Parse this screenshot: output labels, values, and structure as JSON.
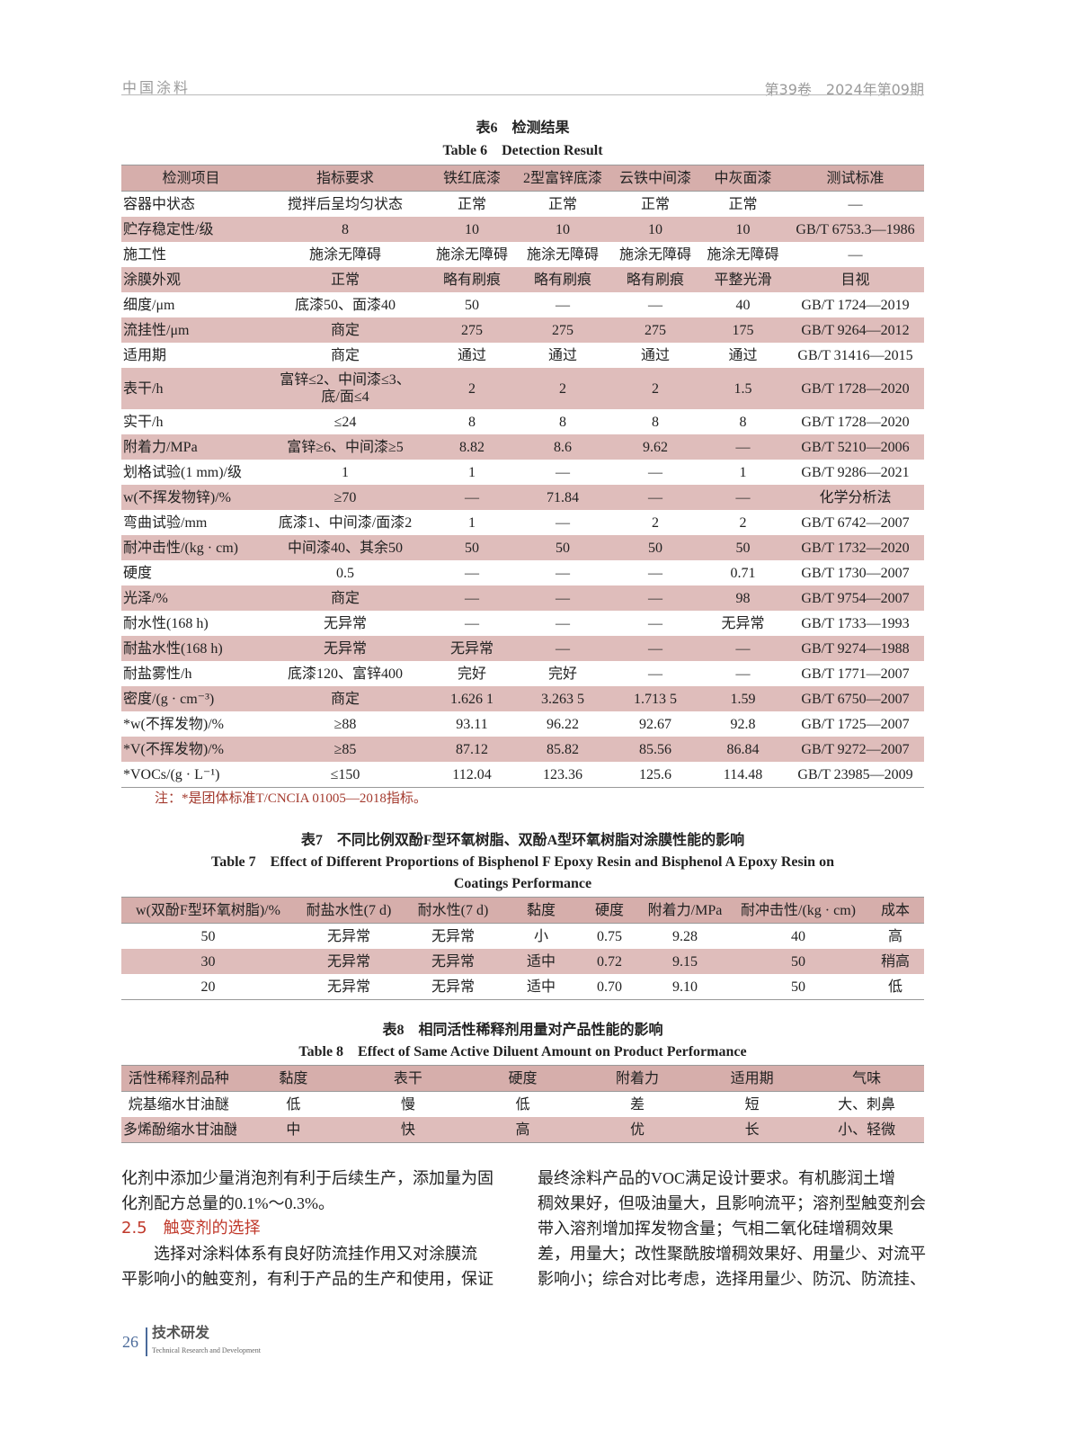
{
  "header": {
    "journal": "中国涂料",
    "issue": "第39卷　2024年第09期"
  },
  "table6": {
    "title_cn": "表6　检测结果",
    "title_en": "Table 6　Detection Result",
    "columns": [
      "检测项目",
      "指标要求",
      "铁红底漆",
      "2型富锌底漆",
      "云铁中间漆",
      "中灰面漆",
      "测试标准"
    ],
    "rows": [
      [
        "容器中状态",
        "搅拌后呈均匀状态",
        "正常",
        "正常",
        "正常",
        "正常",
        "—"
      ],
      [
        "贮存稳定性/级",
        "8",
        "10",
        "10",
        "10",
        "10",
        "GB/T 6753.3—1986"
      ],
      [
        "施工性",
        "施涂无障碍",
        "施涂无障碍",
        "施涂无障碍",
        "施涂无障碍",
        "施涂无障碍",
        "—"
      ],
      [
        "涂膜外观",
        "正常",
        "略有刷痕",
        "略有刷痕",
        "略有刷痕",
        "平整光滑",
        "目视"
      ],
      [
        "细度/μm",
        "底漆50、面漆40",
        "50",
        "—",
        "—",
        "40",
        "GB/T 1724—2019"
      ],
      [
        "流挂性/μm",
        "商定",
        "275",
        "275",
        "275",
        "175",
        "GB/T 9264—2012"
      ],
      [
        "适用期",
        "商定",
        "通过",
        "通过",
        "通过",
        "通过",
        "GB/T 31416—2015"
      ],
      [
        "表干/h",
        "富锌≤2、中间漆≤3、\n底/面≤4",
        "2",
        "2",
        "2",
        "1.5",
        "GB/T 1728—2020"
      ],
      [
        "实干/h",
        "≤24",
        "8",
        "8",
        "8",
        "8",
        "GB/T 1728—2020"
      ],
      [
        "附着力/MPa",
        "富锌≥6、中间漆≥5",
        "8.82",
        "8.6",
        "9.62",
        "—",
        "GB/T 5210—2006"
      ],
      [
        "划格试验(1 mm)/级",
        "1",
        "1",
        "—",
        "—",
        "1",
        "GB/T 9286—2021"
      ],
      [
        "w(不挥发物锌)/%",
        "≥70",
        "—",
        "71.84",
        "—",
        "—",
        "化学分析法"
      ],
      [
        "弯曲试验/mm",
        "底漆1、中间漆/面漆2",
        "1",
        "—",
        "2",
        "2",
        "GB/T 6742—2007"
      ],
      [
        "耐冲击性/(kg · cm)",
        "中间漆40、其余50",
        "50",
        "50",
        "50",
        "50",
        "GB/T 1732—2020"
      ],
      [
        "硬度",
        "0.5",
        "—",
        "—",
        "—",
        "0.71",
        "GB/T 1730—2007"
      ],
      [
        "光泽/%",
        "商定",
        "—",
        "—",
        "—",
        "98",
        "GB/T 9754—2007"
      ],
      [
        "耐水性(168 h)",
        "无异常",
        "—",
        "—",
        "—",
        "无异常",
        "GB/T 1733—1993"
      ],
      [
        "耐盐水性(168 h)",
        "无异常",
        "无异常",
        "—",
        "—",
        "—",
        "GB/T 9274—1988"
      ],
      [
        "耐盐雾性/h",
        "底漆120、富锌400",
        "完好",
        "完好",
        "—",
        "—",
        "GB/T 1771—2007"
      ],
      [
        "密度/(g · cm⁻³)",
        "商定",
        "1.626 1",
        "3.263 5",
        "1.713 5",
        "1.59",
        "GB/T 6750—2007"
      ],
      [
        "*w(不挥发物)/%",
        "≥88",
        "93.11",
        "96.22",
        "92.67",
        "92.8",
        "GB/T 1725—2007"
      ],
      [
        "*V(不挥发物)/%",
        "≥85",
        "87.12",
        "85.82",
        "85.56",
        "86.84",
        "GB/T 9272—2007"
      ],
      [
        "*VOCs/(g · L⁻¹)",
        "≤150",
        "112.04",
        "123.36",
        "125.6",
        "114.48",
        "GB/T 23985—2009"
      ]
    ],
    "note": "注：*是团体标准T/CNCIA 01005—2018指标。"
  },
  "table7": {
    "title_cn": "表7　不同比例双酚F型环氧树脂、双酚A型环氧树脂对涂膜性能的影响",
    "title_en_1": "Table 7　Effect of Different Proportions of Bisphenol F Epoxy Resin and Bisphenol A Epoxy Resin on",
    "title_en_2": "Coatings Performance",
    "columns": [
      "w(双酚F型环氧树脂)/%",
      "耐盐水性(7 d)",
      "耐水性(7 d)",
      "黏度",
      "硬度",
      "附着力/MPa",
      "耐冲击性/(kg · cm)",
      "成本"
    ],
    "rows": [
      [
        "50",
        "无异常",
        "无异常",
        "小",
        "0.75",
        "9.28",
        "40",
        "高"
      ],
      [
        "30",
        "无异常",
        "无异常",
        "适中",
        "0.72",
        "9.15",
        "50",
        "稍高"
      ],
      [
        "20",
        "无异常",
        "无异常",
        "适中",
        "0.70",
        "9.10",
        "50",
        "低"
      ]
    ]
  },
  "table8": {
    "title_cn": "表8　相同活性稀释剂用量对产品性能的影响",
    "title_en": "Table 8　Effect of Same Active Diluent Amount on Product Performance",
    "columns": [
      "活性稀释剂品种",
      "黏度",
      "表干",
      "硬度",
      "附着力",
      "适用期",
      "气味"
    ],
    "rows": [
      [
        "烷基缩水甘油醚",
        "低",
        "慢",
        "低",
        "差",
        "短",
        "大、刺鼻"
      ],
      [
        "多烯酚缩水甘油醚",
        "中",
        "快",
        "高",
        "优",
        "长",
        "小、轻微"
      ]
    ]
  },
  "body": {
    "left": [
      "化剂中添加少量消泡剂有利于后续生产，添加量为固",
      "化剂配方总量的0.1%～0.3%。",
      "2.5　触变剂的选择",
      "　　选择对涂料体系有良好防流挂作用又对涂膜流",
      "平影响小的触变剂，有利于产品的生产和使用，保证"
    ],
    "right": [
      "最终涂料产品的VOC满足设计要求。有机膨润土增",
      "稠效果好，但吸油量大，且影响流平；溶剂型触变剂会",
      "带入溶剂增加挥发物含量；气相二氧化硅增稠效果",
      "差，用量大；改性聚酰胺增稠效果好、用量少、对流平",
      "影响小；综合对比考虑，选择用量少、防沉、防流挂、"
    ]
  },
  "footer": {
    "page": "26",
    "section_cn": "技术研发",
    "section_en": "Technical Research and Development"
  }
}
